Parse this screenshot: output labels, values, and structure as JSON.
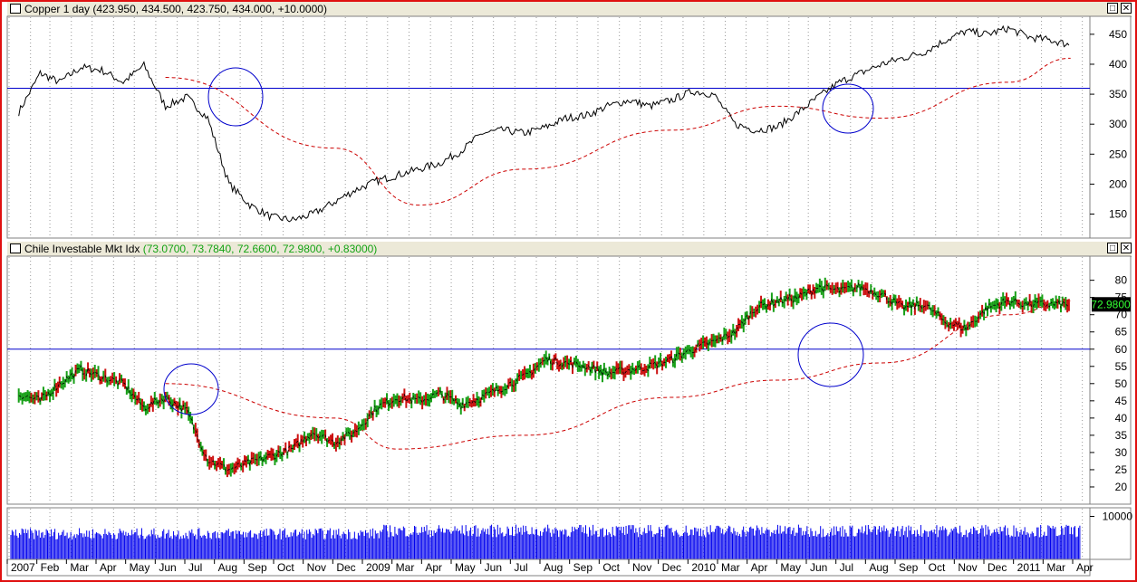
{
  "top_pane": {
    "title": "Copper 1 day",
    "ohlc": "(423.950, 434.500, 423.750, 434.000, +10.0000)"
  },
  "mid_pane": {
    "title": "Chile Investable Mkt Idx",
    "ohlc": "(73.0700, 73.7840, 72.6600, 72.9800, +0.83000)",
    "last_value_label": "72.9800"
  },
  "window_buttons": {
    "restore": "□",
    "close": "✕"
  },
  "colors": {
    "price": "#000000",
    "ma": "#cc0000",
    "hline": "#0000cc",
    "circle": "#0000cc",
    "up": "#18a018",
    "down": "#cc1111",
    "volume": "#0000ee",
    "frame": "#e01010"
  },
  "chart_data": [
    {
      "type": "line",
      "title": "Copper 1 day",
      "series": [
        {
          "role": "price",
          "x": [
            "2007-01",
            "2007-02",
            "2007-03",
            "2007-04",
            "2007-05",
            "2007-06",
            "2007-07",
            "2007-08",
            "2007-09",
            "2007-10",
            "2007-11",
            "2007-12",
            "2008-01",
            "2008-02",
            "2008-03",
            "2008-04",
            "2008-05",
            "2008-06",
            "2008-07",
            "2008-08",
            "2008-09",
            "2008-10",
            "2008-11",
            "2008-12",
            "2009-01",
            "2009-02",
            "2009-03",
            "2009-04",
            "2009-05",
            "2009-06",
            "2009-07",
            "2009-08",
            "2009-09",
            "2009-10",
            "2009-11",
            "2009-12",
            "2010-01",
            "2010-02",
            "2010-03",
            "2010-04",
            "2010-05",
            "2010-06",
            "2010-07",
            "2010-08",
            "2010-09",
            "2010-10",
            "2010-11",
            "2010-12",
            "2011-01",
            "2011-02",
            "2011-03"
          ],
          "values": [
            320,
            385,
            370,
            395,
            390,
            370,
            398,
            330,
            345,
            310,
            200,
            165,
            145,
            140,
            150,
            170,
            190,
            205,
            215,
            225,
            235,
            255,
            285,
            290,
            285,
            295,
            310,
            315,
            330,
            340,
            330,
            340,
            355,
            350,
            300,
            290,
            295,
            320,
            345,
            370,
            385,
            400,
            410,
            420,
            440,
            455,
            450,
            460,
            445,
            440,
            432
          ]
        },
        {
          "role": "moving-average",
          "x": [
            "2007-08",
            "2008-04",
            "2008-08",
            "2009-01",
            "2009-08",
            "2010-01",
            "2010-06",
            "2010-12",
            "2011-03"
          ],
          "values": [
            378,
            260,
            165,
            225,
            290,
            330,
            310,
            370,
            410
          ]
        }
      ],
      "horizontal_line": 360,
      "ylim": [
        110,
        480
      ],
      "yticks": [
        150,
        200,
        250,
        300,
        350,
        400,
        450
      ]
    },
    {
      "type": "line",
      "title": "Chile Investable Mkt Idx",
      "series": [
        {
          "role": "price",
          "x": [
            "2007-01",
            "2007-02",
            "2007-03",
            "2007-04",
            "2007-05",
            "2007-06",
            "2007-07",
            "2007-08",
            "2007-09",
            "2007-10",
            "2007-11",
            "2007-12",
            "2008-01",
            "2008-02",
            "2008-03",
            "2008-04",
            "2008-05",
            "2008-06",
            "2008-07",
            "2008-08",
            "2008-09",
            "2008-10",
            "2008-11",
            "2008-12",
            "2009-01",
            "2009-02",
            "2009-03",
            "2009-04",
            "2009-05",
            "2009-06",
            "2009-07",
            "2009-08",
            "2009-09",
            "2009-10",
            "2009-11",
            "2009-12",
            "2010-01",
            "2010-02",
            "2010-03",
            "2010-04",
            "2010-05",
            "2010-06",
            "2010-07",
            "2010-08",
            "2010-09",
            "2010-10",
            "2010-11",
            "2010-12",
            "2011-01",
            "2011-02",
            "2011-03"
          ],
          "values": [
            47,
            45,
            50,
            54,
            52,
            50,
            43,
            46,
            42,
            28,
            25,
            27,
            29,
            31,
            36,
            33,
            36,
            43,
            46,
            45,
            47,
            44,
            46,
            49,
            52,
            57,
            56,
            55,
            53,
            54,
            55,
            57,
            60,
            62,
            65,
            72,
            74,
            75,
            78,
            77,
            78,
            76,
            72,
            73,
            68,
            66,
            72,
            74,
            73,
            73,
            73
          ]
        },
        {
          "role": "moving-average",
          "x": [
            "2007-08",
            "2008-04",
            "2008-07",
            "2009-01",
            "2009-08",
            "2010-01",
            "2010-06",
            "2010-12",
            "2011-03"
          ],
          "values": [
            50,
            40,
            31,
            35,
            46,
            51,
            56,
            70,
            74
          ]
        }
      ],
      "horizontal_line": 60,
      "ylim": [
        15,
        87
      ],
      "yticks": [
        20,
        25,
        30,
        35,
        40,
        45,
        50,
        55,
        60,
        65,
        70,
        75,
        80
      ]
    },
    {
      "type": "bar",
      "title": "",
      "yticks": [
        10000
      ],
      "note_level": 9200
    }
  ],
  "x_axis": {
    "labels": [
      "2007",
      "Feb",
      "Mar",
      "Apr",
      "May",
      "Jun",
      "Jul",
      "Aug",
      "Sep",
      "Oct",
      "Nov",
      "Dec",
      "2009",
      "Mar",
      "Apr",
      "May",
      "Jun",
      "Jul",
      "Aug",
      "Sep",
      "Oct",
      "Nov",
      "Dec",
      "2010",
      "Mar",
      "Apr",
      "May",
      "Jun",
      "Jul",
      "Aug",
      "Sep",
      "Oct",
      "Nov",
      "Dec",
      "2011",
      "Mar",
      "Apr"
    ]
  }
}
